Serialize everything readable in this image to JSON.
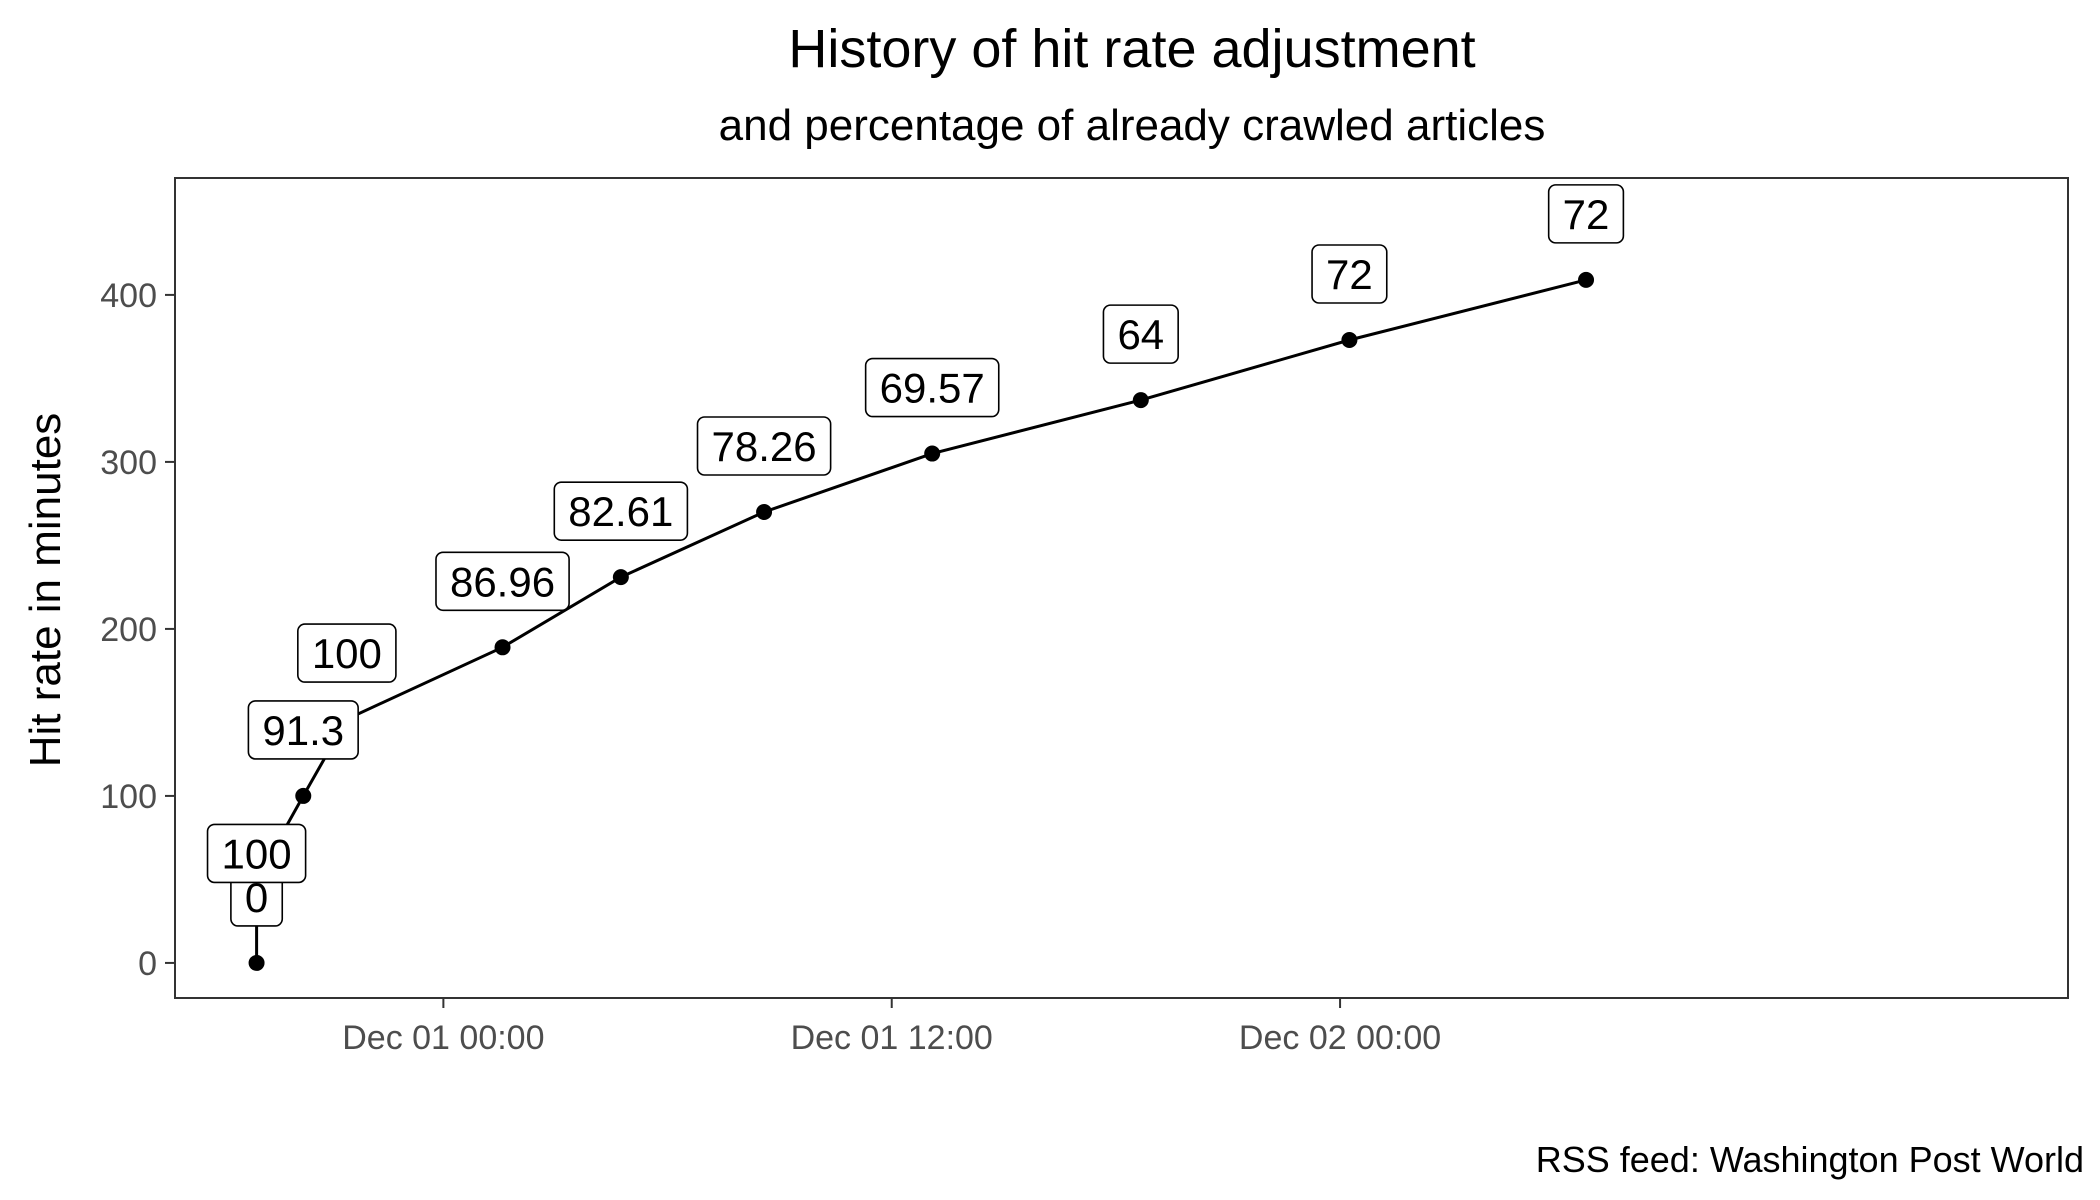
{
  "chart_data": {
    "type": "line",
    "title": "History of hit rate adjustment",
    "subtitle": "and percentage of already crawled articles",
    "xlabel": "",
    "ylabel": "Hit rate in minutes",
    "caption": "RSS feed: Washington Post World",
    "x_axis_type": "datetime",
    "xlim": [
      "2022-11-30 16:49",
      "2022-12-02 19:29"
    ],
    "ylim": [
      -21,
      470
    ],
    "x_ticks": [
      {
        "value": "2022-12-01 00:00",
        "label": "Dec 01 00:00"
      },
      {
        "value": "2022-12-01 12:00",
        "label": "Dec 01 12:00"
      },
      {
        "value": "2022-12-02 00:00",
        "label": "Dec 02 00:00"
      }
    ],
    "y_ticks": [
      0,
      100,
      200,
      300,
      400
    ],
    "grid": false,
    "line_color": "#000000",
    "series": [
      {
        "points": [
          {
            "x": "2022-11-30 19:00",
            "y": 0,
            "label": "0"
          },
          {
            "x": "2022-11-30 19:00",
            "y": 50,
            "label": "100"
          },
          {
            "x": "2022-11-30 20:15",
            "y": 100,
            "label": "91.3"
          },
          {
            "x": "2022-11-30 21:25",
            "y": 146,
            "label": "100"
          },
          {
            "x": "2022-12-01 01:35",
            "y": 189,
            "label": "86.96"
          },
          {
            "x": "2022-12-01 04:45",
            "y": 231,
            "label": "82.61"
          },
          {
            "x": "2022-12-01 08:35",
            "y": 270,
            "label": "78.26"
          },
          {
            "x": "2022-12-01 13:05",
            "y": 305,
            "label": "69.57"
          },
          {
            "x": "2022-12-01 18:40",
            "y": 337,
            "label": "64"
          },
          {
            "x": "2022-12-02 00:15",
            "y": 373,
            "label": "72"
          },
          {
            "x": "2022-12-02 06:35",
            "y": 409,
            "label": "72"
          }
        ]
      }
    ]
  }
}
